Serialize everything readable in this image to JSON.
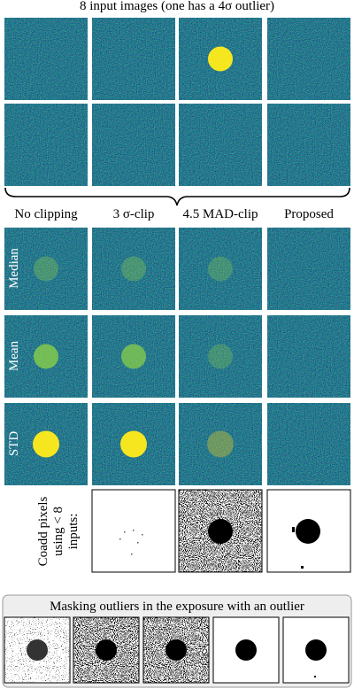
{
  "title": "8 input images (one has a 4σ outlier)",
  "columns": [
    "No clipping",
    "3 σ-clip",
    "4.5 MAD-clip",
    "Proposed"
  ],
  "rows": [
    "Median",
    "Mean",
    "STD"
  ],
  "coadd_label": [
    "Coadd pixels",
    "using < 8",
    "inputs:"
  ],
  "bottom_title": "Masking outliers in the exposure with an outlier"
}
